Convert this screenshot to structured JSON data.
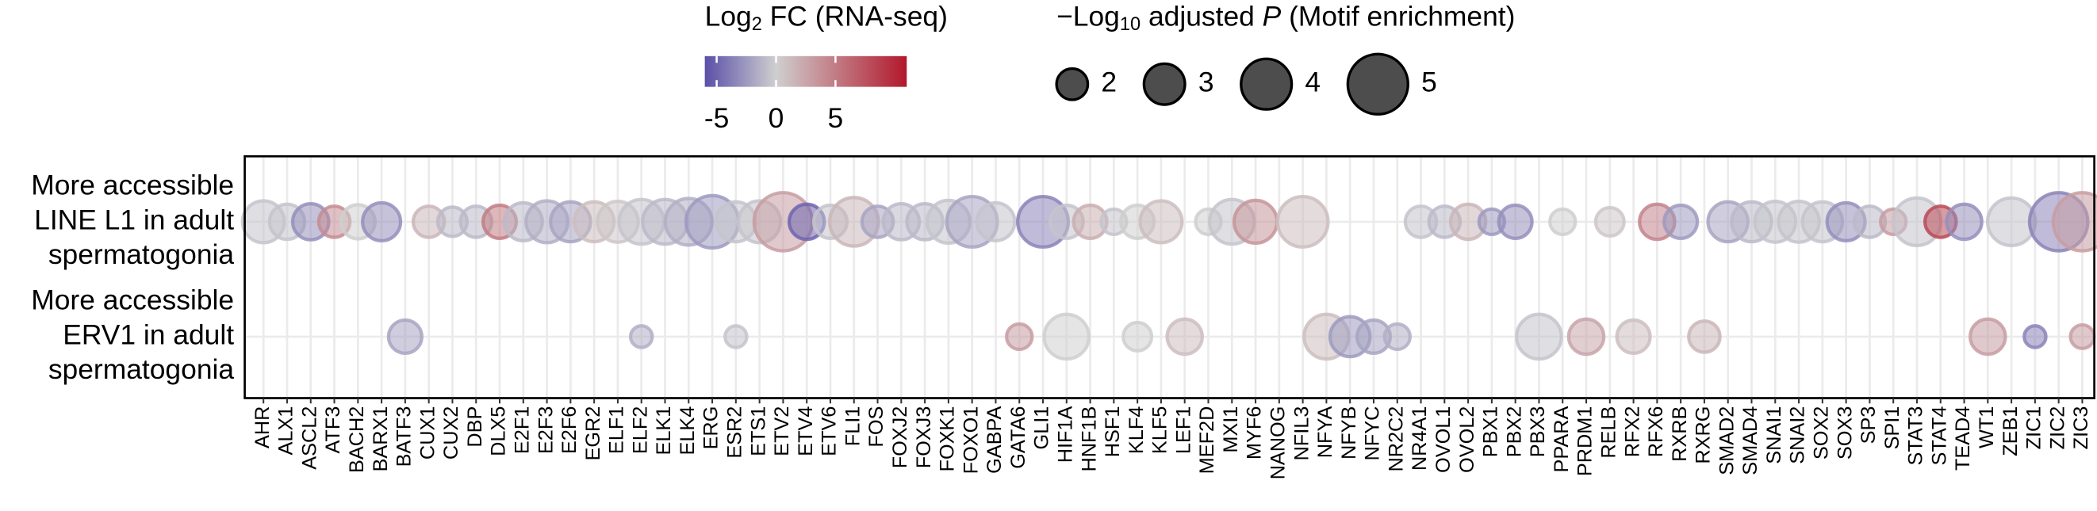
{
  "chart_data": {
    "type": "bubble",
    "color_legend_title": [
      "Log",
      "2",
      " FC (RNA-seq)"
    ],
    "size_legend_title": [
      "−Log",
      "10",
      " adjusted ",
      "P",
      " (Motif enrichment)"
    ],
    "clim": [
      -6,
      11
    ],
    "cticks": [
      -5,
      0,
      5
    ],
    "colormap": [
      "#5a4fa8",
      "#cfcfcf",
      "#b2182b"
    ],
    "size_ticks": [
      2,
      3,
      4,
      5
    ],
    "grid": true,
    "categories": [
      "AHR",
      "ALX1",
      "ASCL2",
      "ATF3",
      "BACH2",
      "BARX1",
      "BATF3",
      "CUX1",
      "CUX2",
      "DBP",
      "DLX5",
      "E2F1",
      "E2F3",
      "E2F6",
      "EGR2",
      "ELF1",
      "ELF2",
      "ELK1",
      "ELK4",
      "ERG",
      "ESR2",
      "ETS1",
      "ETV2",
      "ETV4",
      "ETV6",
      "FLI1",
      "FOS",
      "FOXJ2",
      "FOXJ3",
      "FOXK1",
      "FOXO1",
      "GABPA",
      "GATA6",
      "GLI1",
      "HIF1A",
      "HNF1B",
      "HSF1",
      "KLF4",
      "KLF5",
      "LEF1",
      "MEF2D",
      "MXI1",
      "MYF6",
      "NANOG",
      "NFIL3",
      "NFYA",
      "NFYB",
      "NFYC",
      "NR2C2",
      "NR4A1",
      "OVOL1",
      "OVOL2",
      "PBX1",
      "PBX2",
      "PBX3",
      "PPARA",
      "PRDM1",
      "RELB",
      "RFX2",
      "RFX6",
      "RXRB",
      "RXRG",
      "SMAD2",
      "SMAD4",
      "SNAI1",
      "SNAI2",
      "SOX2",
      "SOX3",
      "SP3",
      "SPI1",
      "STAT3",
      "STAT4",
      "TEAD4",
      "WT1",
      "ZEB1",
      "ZIC1",
      "ZIC2",
      "ZIC3"
    ],
    "series": [
      {
        "name": [
          "More accessible",
          "LINE L1 in adult",
          "spermatogonia"
        ],
        "values": [
          -0.5,
          -0.5,
          -3,
          4,
          0,
          -3,
          null,
          1.5,
          -1,
          -1,
          5,
          -1,
          -1.5,
          -2,
          1,
          0.5,
          -0.5,
          -1,
          -1.5,
          -2.5,
          -0.5,
          -0.5,
          3,
          -5,
          -0.5,
          1.5,
          -2,
          -1,
          -1,
          -0.5,
          -2,
          -0.5,
          null,
          -3.5,
          -0.5,
          2,
          -0.5,
          0,
          1,
          null,
          0,
          -0.5,
          3.5,
          null,
          1,
          null,
          null,
          null,
          null,
          -0.5,
          -1,
          1.5,
          -2.5,
          -3,
          null,
          0,
          null,
          0.5,
          null,
          4.5,
          -2.5,
          null,
          -2,
          -1,
          -0.5,
          -0.5,
          -0.5,
          -3,
          -1,
          3,
          -0.5,
          8,
          -3,
          null,
          -0.5,
          null,
          -3.5,
          3
        ],
        "sizes": [
          3.1,
          2.4,
          2.5,
          2,
          2.3,
          2.7,
          null,
          2,
          1.8,
          2,
          2.2,
          2.7,
          3.1,
          2.9,
          2.9,
          3,
          3.4,
          3.4,
          3.6,
          4.2,
          2.9,
          3.1,
          4.8,
          2.4,
          2.2,
          3.8,
          2,
          2.5,
          2.5,
          3.2,
          4,
          2.7,
          null,
          4,
          2.2,
          2.2,
          1.4,
          2.2,
          3.1,
          null,
          1.4,
          3.4,
          3.2,
          null,
          4,
          null,
          null,
          null,
          null,
          2,
          2,
          2.4,
          1.4,
          2.2,
          null,
          1.4,
          null,
          1.7,
          null,
          2.4,
          2.2,
          null,
          2.9,
          2.9,
          3,
          3,
          2.9,
          2.7,
          2,
          1.4,
          3.7,
          2,
          2.4,
          null,
          3.7,
          null,
          4.8,
          4.8
        ]
      },
      {
        "name": [
          "More accessible",
          "ERV1 in adult",
          "spermatogonia"
        ],
        "values": [
          null,
          null,
          null,
          null,
          null,
          null,
          -2,
          null,
          null,
          null,
          null,
          null,
          null,
          null,
          null,
          null,
          -1.5,
          null,
          null,
          null,
          -0.5,
          null,
          null,
          null,
          null,
          null,
          null,
          null,
          null,
          null,
          null,
          null,
          3,
          null,
          0,
          null,
          null,
          0,
          null,
          1,
          null,
          null,
          null,
          null,
          null,
          1,
          -2.5,
          -2,
          -1.5,
          null,
          null,
          null,
          null,
          null,
          -0.5,
          null,
          2.5,
          null,
          1,
          null,
          null,
          1.5,
          null,
          null,
          null,
          null,
          null,
          null,
          null,
          null,
          null,
          null,
          null,
          3,
          null,
          -3.5,
          null,
          3
        ],
        "sizes": [
          null,
          null,
          null,
          null,
          null,
          null,
          2.2,
          null,
          null,
          null,
          null,
          null,
          null,
          null,
          null,
          null,
          1,
          null,
          null,
          null,
          1,
          null,
          null,
          null,
          null,
          null,
          null,
          null,
          null,
          null,
          null,
          null,
          1.4,
          null,
          3.4,
          null,
          null,
          1.7,
          null,
          2.4,
          null,
          null,
          null,
          null,
          null,
          3.4,
          2.9,
          2.2,
          1.4,
          null,
          null,
          null,
          null,
          null,
          3.4,
          null,
          2.4,
          null,
          2.2,
          null,
          null,
          2,
          null,
          null,
          null,
          null,
          null,
          null,
          null,
          null,
          null,
          null,
          null,
          2.4,
          null,
          1,
          null,
          1.2
        ]
      }
    ]
  }
}
